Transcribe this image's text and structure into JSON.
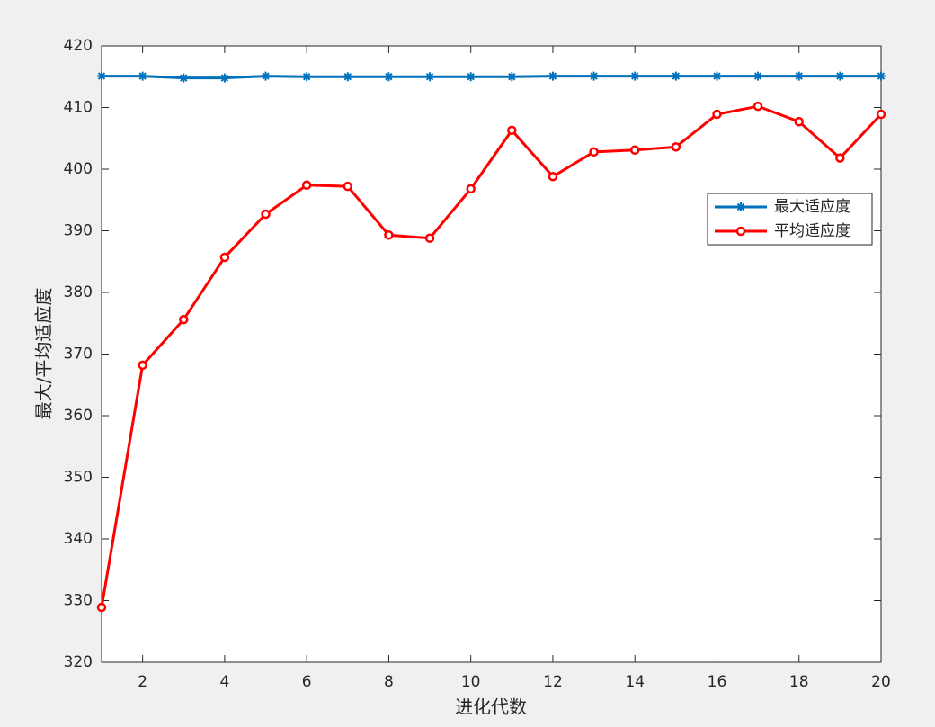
{
  "chart_data": {
    "type": "line",
    "x": [
      1,
      2,
      3,
      4,
      5,
      6,
      7,
      8,
      9,
      10,
      11,
      12,
      13,
      14,
      15,
      16,
      17,
      18,
      19,
      20
    ],
    "series": [
      {
        "name": "最大适应度",
        "color": "#0072bd",
        "marker": "asterisk",
        "values": [
          415.1,
          415.1,
          414.8,
          414.8,
          415.1,
          415.0,
          415.0,
          415.0,
          415.0,
          415.0,
          415.0,
          415.1,
          415.1,
          415.1,
          415.1,
          415.1,
          415.1,
          415.1,
          415.1,
          415.1
        ]
      },
      {
        "name": "平均适应度",
        "color": "#ff0000",
        "marker": "circle",
        "values": [
          328.9,
          368.2,
          375.6,
          385.7,
          392.7,
          397.4,
          397.2,
          389.3,
          388.8,
          396.8,
          406.3,
          398.8,
          402.8,
          403.1,
          403.6,
          408.9,
          410.2,
          407.7,
          401.8,
          408.9
        ]
      }
    ],
    "x_label": "进化代数",
    "y_label": "最大/平均适应度",
    "xlim": [
      1,
      20
    ],
    "xticks": [
      2,
      4,
      6,
      8,
      10,
      12,
      14,
      16,
      18,
      20
    ],
    "ylim": [
      320,
      420
    ],
    "yticks": [
      320,
      330,
      340,
      350,
      360,
      370,
      380,
      390,
      400,
      410,
      420
    ]
  }
}
